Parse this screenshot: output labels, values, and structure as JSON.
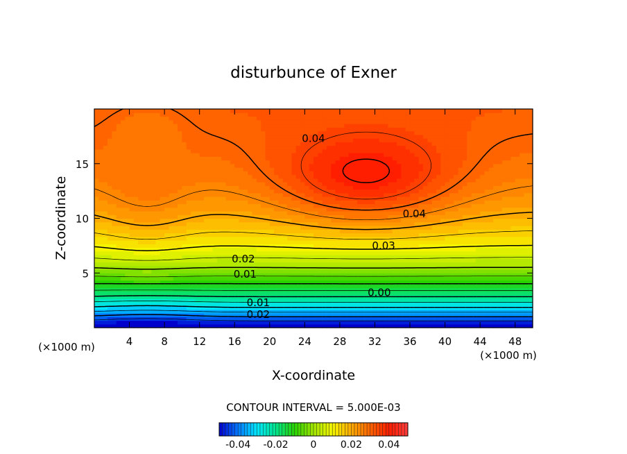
{
  "chart_data": {
    "type": "heatmap",
    "title": "disturbunce of Exner",
    "xlabel": "X-coordinate",
    "ylabel": "Z-coordinate",
    "x_unit_left": "(×1000 m)",
    "x_unit_right": "(×1000 m)",
    "xlim": [
      0,
      50
    ],
    "ylim": [
      0,
      20
    ],
    "x_ticks": [
      4,
      8,
      12,
      16,
      20,
      24,
      28,
      32,
      36,
      40,
      44,
      48
    ],
    "y_ticks": [
      5,
      10,
      15
    ],
    "contour_interval_text": "CONTOUR INTERVAL = 5.000E-03",
    "contour_labels": [
      {
        "text": "0.04",
        "x": 25.0,
        "y": 17.3
      },
      {
        "text": "0.04",
        "x": 36.5,
        "y": 10.4
      },
      {
        "text": "0.03",
        "x": 33.0,
        "y": 7.5
      },
      {
        "text": "0.02",
        "x": 17.0,
        "y": 6.3
      },
      {
        "text": "0.01",
        "x": 17.2,
        "y": 4.9
      },
      {
        "text": "0.00",
        "x": 32.5,
        "y": 3.2
      },
      {
        "text": "0.01",
        "x": 18.7,
        "y": 2.3
      },
      {
        "text": "0.02",
        "x": 18.7,
        "y": 1.2
      }
    ],
    "value_range": [
      -0.05,
      0.05
    ],
    "colorbar_ticks": [
      {
        "label": "-0.04",
        "value": -0.04
      },
      {
        "label": "-0.02",
        "value": -0.02
      },
      {
        "label": "0",
        "value": 0
      },
      {
        "label": "0.02",
        "value": 0.02
      },
      {
        "label": "0.04",
        "value": 0.04
      }
    ],
    "colormap": [
      "#0000cc",
      "#0078ff",
      "#00e6ff",
      "#00e68c",
      "#28d200",
      "#a0e600",
      "#f5f500",
      "#ffaa00",
      "#ff6400",
      "#ff1e00",
      "#ff3c3c"
    ]
  }
}
